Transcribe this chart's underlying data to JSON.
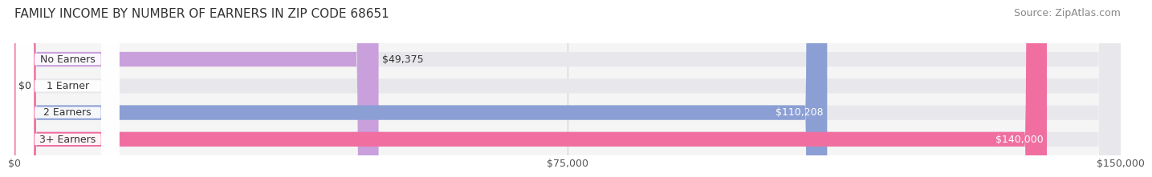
{
  "title": "FAMILY INCOME BY NUMBER OF EARNERS IN ZIP CODE 68651",
  "source": "Source: ZipAtlas.com",
  "categories": [
    "No Earners",
    "1 Earner",
    "2 Earners",
    "3+ Earners"
  ],
  "values": [
    49375,
    0,
    110208,
    140000
  ],
  "bar_colors": [
    "#c9a0dc",
    "#5ec8c0",
    "#8b9fd4",
    "#f06fa0"
  ],
  "bar_bg_color": "#f0f0f0",
  "x_max": 150000,
  "x_ticks": [
    0,
    75000,
    150000
  ],
  "x_tick_labels": [
    "$0",
    "$75,000",
    "$150,000"
  ],
  "label_texts": [
    "$49,375",
    "$0",
    "$110,208",
    "$140,000"
  ],
  "bg_color": "#ffffff",
  "bar_height": 0.55,
  "title_fontsize": 11,
  "source_fontsize": 9,
  "tick_fontsize": 9,
  "label_fontsize": 9,
  "category_fontsize": 9
}
